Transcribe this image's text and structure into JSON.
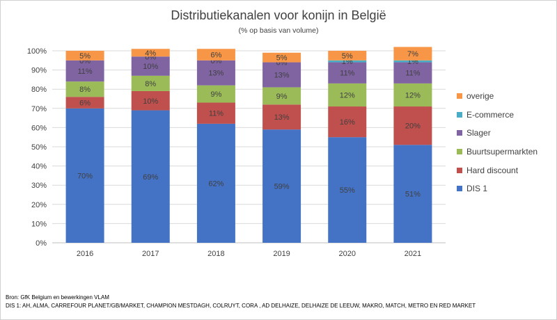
{
  "chart_data": {
    "type": "bar",
    "stacked": true,
    "title": "Distributiekanalen voor konijn in België",
    "subtitle": "(% op basis van volume)",
    "categories": [
      "2016",
      "2017",
      "2018",
      "2019",
      "2020",
      "2021"
    ],
    "ylim": [
      0,
      100
    ],
    "yticks": [
      "0%",
      "10%",
      "20%",
      "30%",
      "40%",
      "50%",
      "60%",
      "70%",
      "80%",
      "90%",
      "100%"
    ],
    "grid": true,
    "legend_position": "right",
    "series": [
      {
        "name": "DIS 1",
        "color": "#4472C4",
        "values": [
          70,
          69,
          62,
          59,
          55,
          51
        ]
      },
      {
        "name": "Hard discount",
        "color": "#C0504D",
        "values": [
          6,
          10,
          11,
          13,
          16,
          20
        ]
      },
      {
        "name": "Buurtsupermarkten",
        "color": "#9BBB59",
        "values": [
          8,
          8,
          9,
          9,
          12,
          12
        ]
      },
      {
        "name": "Slager",
        "color": "#8064A2",
        "values": [
          11,
          10,
          13,
          13,
          11,
          11
        ]
      },
      {
        "name": "E-commerce",
        "color": "#4BACC6",
        "values": [
          0,
          0,
          0,
          0,
          1,
          1
        ]
      },
      {
        "name": "overige",
        "color": "#F79646",
        "values": [
          5,
          4,
          6,
          5,
          5,
          7
        ]
      }
    ]
  },
  "footnotes": {
    "source": "Bron: GfK Belgium en bewerkingen VLAM",
    "dis1": "DIS 1: AH, ALMA, CARREFOUR PLANET/GB/MARKET, CHAMPION MESTDAGH, COLRUYT, CORA , AD DELHAIZE, DELHAIZE DE LEEUW, MAKRO, MATCH, METRO EN RED MARKET"
  }
}
